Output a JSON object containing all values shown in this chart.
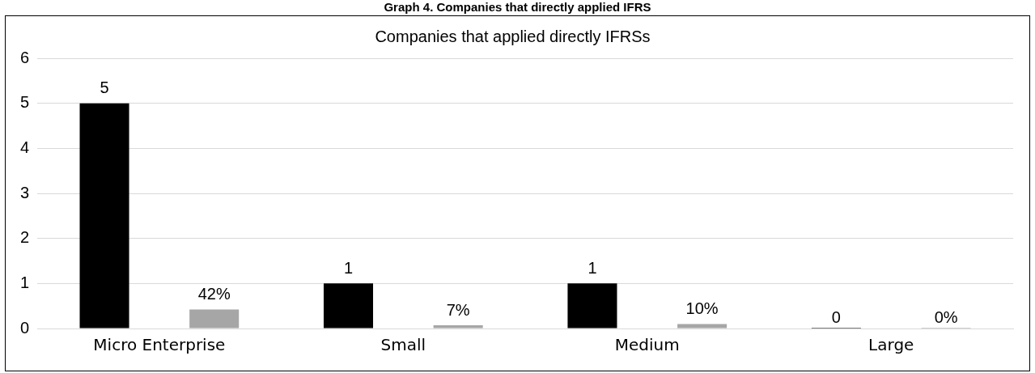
{
  "chart_data": {
    "type": "bar",
    "title": "Graph 4. Companies that directly applied IFRS",
    "subtitle": "Companies that applied directly IFRSs",
    "categories": [
      "Micro Enterprise",
      "Small",
      "Medium",
      "Large"
    ],
    "series": [
      {
        "color": "#000000",
        "values": [
          5,
          1,
          1,
          0
        ],
        "value_labels": [
          "5",
          "1",
          "1",
          "0"
        ]
      },
      {
        "color": "#a6a6a6",
        "values": [
          0.42,
          0.07,
          0.1,
          0
        ],
        "value_labels": [
          "42%",
          "7%",
          "10%",
          "0%"
        ]
      }
    ],
    "ylim": [
      0,
      6
    ],
    "yticks": [
      0,
      1,
      2,
      3,
      4,
      5,
      6
    ],
    "grid": "y",
    "legend": false
  }
}
